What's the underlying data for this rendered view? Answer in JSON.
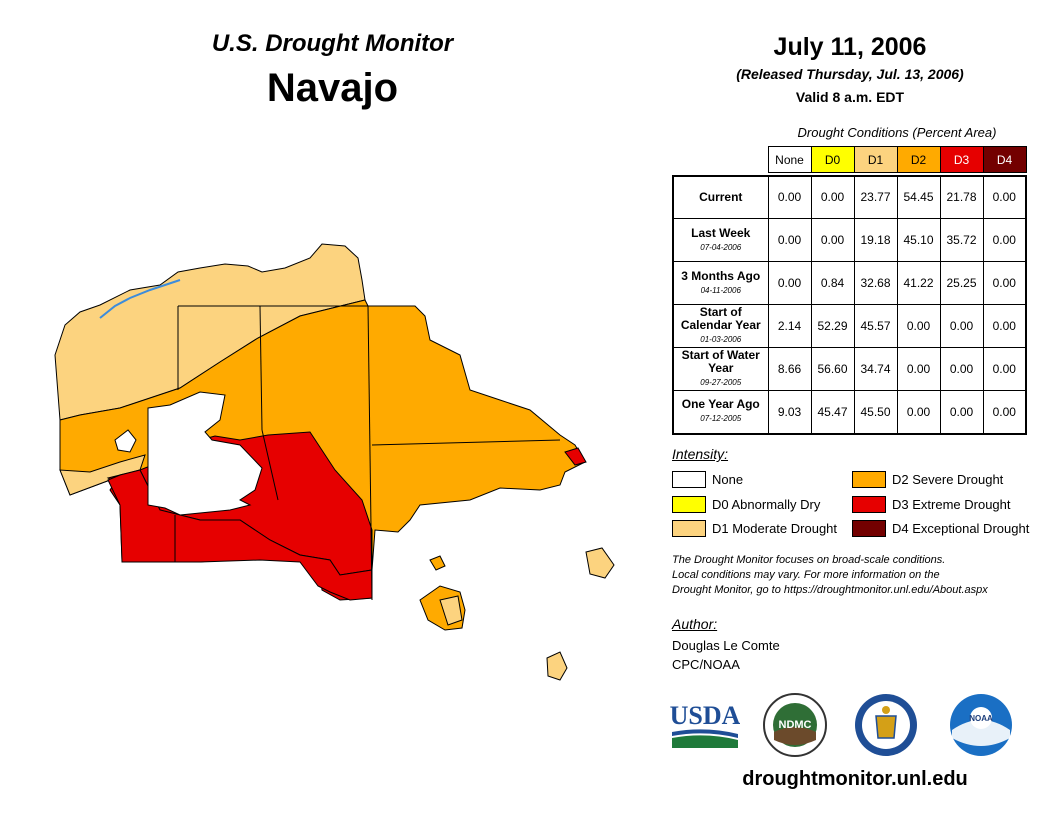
{
  "header": {
    "subtitle": "U.S. Drought Monitor",
    "title": "Navajo",
    "date": "July 11, 2006",
    "released": "(Released Thursday, Jul. 13, 2006)",
    "valid": "Valid 8 a.m. EDT"
  },
  "table": {
    "caption": "Drought Conditions (Percent Area)",
    "columns": [
      "None",
      "D0",
      "D1",
      "D2",
      "D3",
      "D4"
    ],
    "rows": [
      {
        "label": "Current",
        "date": "",
        "values": [
          "0.00",
          "0.00",
          "23.77",
          "54.45",
          "21.78",
          "0.00"
        ]
      },
      {
        "label": "Last Week",
        "date": "07-04-2006",
        "values": [
          "0.00",
          "0.00",
          "19.18",
          "45.10",
          "35.72",
          "0.00"
        ]
      },
      {
        "label": "3 Months Ago",
        "date": "04-11-2006",
        "values": [
          "0.00",
          "0.84",
          "32.68",
          "41.22",
          "25.25",
          "0.00"
        ]
      },
      {
        "label": "Start of Calendar Year",
        "date": "01-03-2006",
        "values": [
          "2.14",
          "52.29",
          "45.57",
          "0.00",
          "0.00",
          "0.00"
        ]
      },
      {
        "label": "Start of Water Year",
        "date": "09-27-2005",
        "values": [
          "8.66",
          "56.60",
          "34.74",
          "0.00",
          "0.00",
          "0.00"
        ]
      },
      {
        "label": "One Year Ago",
        "date": "07-12-2005",
        "values": [
          "9.03",
          "45.47",
          "45.50",
          "0.00",
          "0.00",
          "0.00"
        ]
      }
    ]
  },
  "legend": {
    "title": "Intensity:",
    "items": [
      {
        "label": "None",
        "color": "#ffffff"
      },
      {
        "label": "D0 Abnormally Dry",
        "color": "#ffff00"
      },
      {
        "label": "D1 Moderate Drought",
        "color": "#fcd37f"
      },
      {
        "label": "D2 Severe Drought",
        "color": "#ffaa00"
      },
      {
        "label": "D3 Extreme Drought",
        "color": "#e60000"
      },
      {
        "label": "D4 Exceptional Drought",
        "color": "#730000"
      }
    ]
  },
  "note": {
    "line1": "The Drought Monitor focuses on broad-scale conditions.",
    "line2": "Local conditions may vary. For more information on the",
    "line3": "Drought Monitor, go to https://droughtmonitor.unl.edu/About.aspx"
  },
  "author": {
    "title": "Author:",
    "name": "Douglas Le Comte",
    "org": "CPC/NOAA"
  },
  "logos": {
    "usda": "USDA",
    "ndmc": "NDMC",
    "noaa": "NOAA"
  },
  "website": "droughtmonitor.unl.edu",
  "colors": {
    "none": "#ffffff",
    "d0": "#ffff00",
    "d1": "#fcd37f",
    "d2": "#ffaa00",
    "d3": "#e60000",
    "d4": "#730000",
    "water": "#3c8cdc"
  }
}
